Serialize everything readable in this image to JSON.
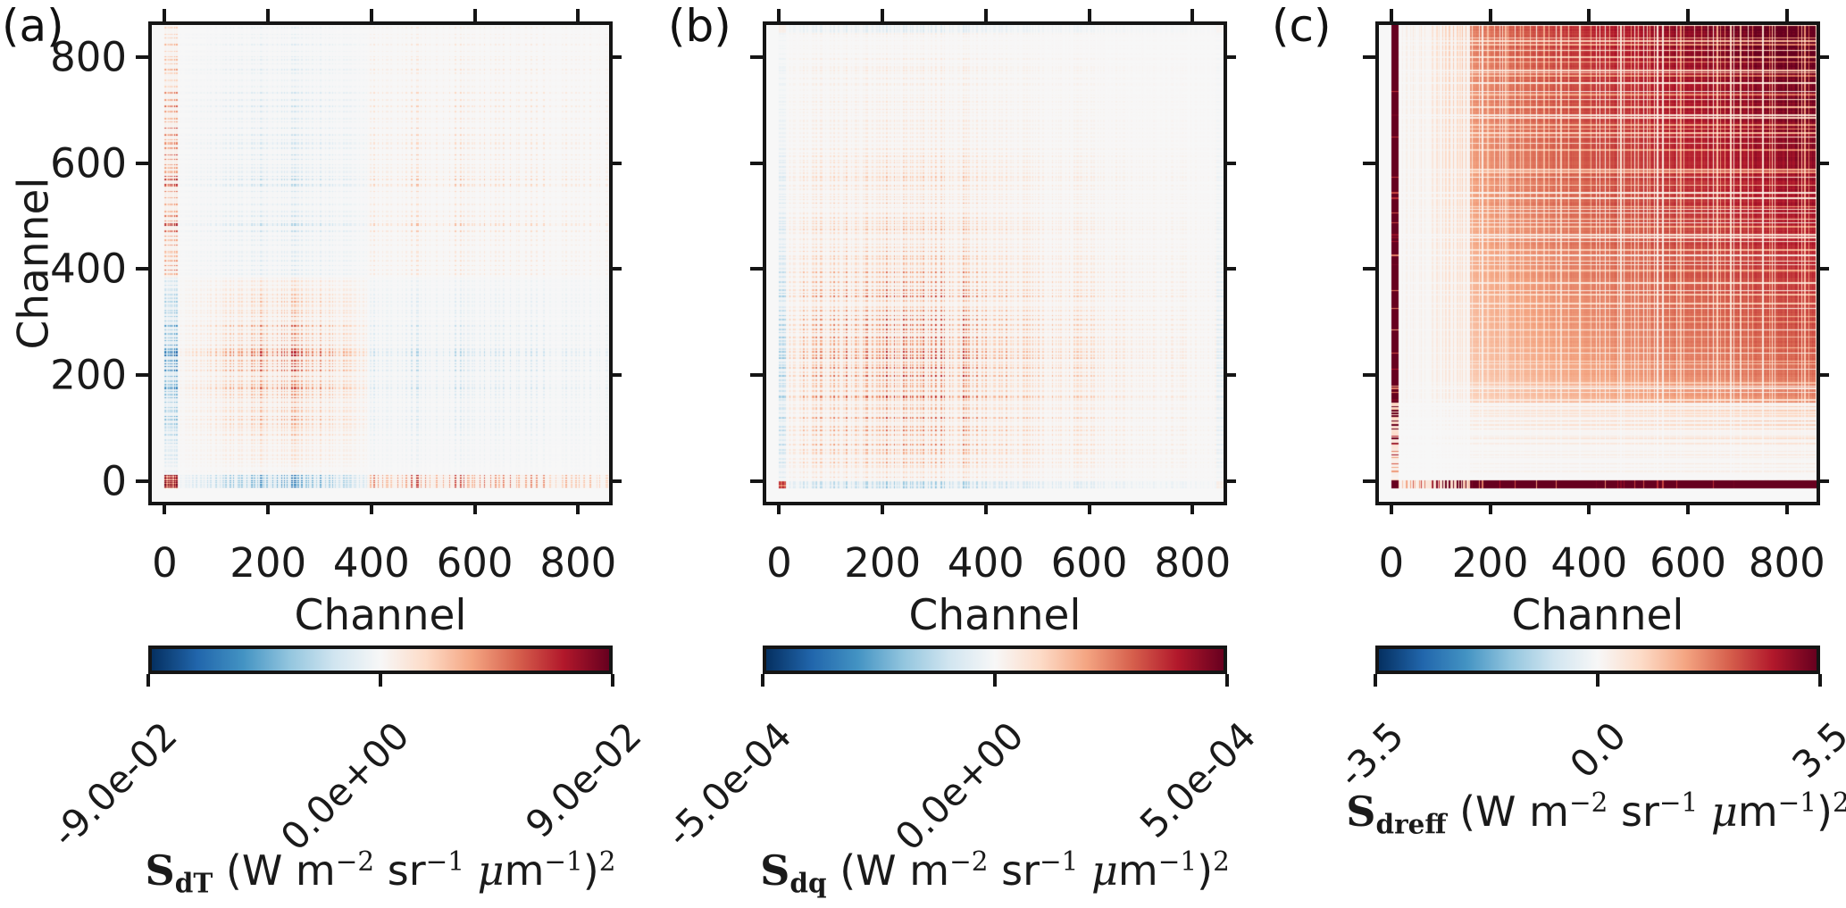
{
  "chart_data": [
    {
      "panel": "a",
      "type": "heatmap",
      "tag": "(a)",
      "xlabel": "Channel",
      "ylabel": "Channel",
      "x_ticks": [
        0,
        200,
        400,
        600,
        800
      ],
      "x_tick_labels": [
        "0",
        "200",
        "400",
        "600",
        "800"
      ],
      "y_ticks": [
        0,
        200,
        400,
        600,
        800
      ],
      "y_tick_labels": [
        "0",
        "200",
        "400",
        "600",
        "800"
      ],
      "axis_range": [
        -25,
        860
      ],
      "n_channels": 880,
      "colormap": "RdBu_r",
      "vmin": -0.09,
      "vmax": 0.09,
      "colorbar_ticks": [
        -0.09,
        0.0,
        0.09
      ],
      "colorbar_tick_labels": [
        "-9.0e-02",
        "0.0e+00",
        "9.0e-02"
      ],
      "quantity": "S_dT",
      "units_text": "(W m⁻² sr⁻¹ μm⁻¹)²",
      "label_rich": [
        {
          "t": "S",
          "b": true,
          "serif": true
        },
        {
          "t": "dT",
          "b": true,
          "sub": true,
          "serif": true
        },
        {
          "t": " (W m"
        },
        {
          "t": "−2",
          "sup": true,
          "serif": true
        },
        {
          "t": " sr"
        },
        {
          "t": "−1",
          "sup": true,
          "serif": true
        },
        {
          "t": " "
        },
        {
          "t": "μ",
          "i": true,
          "serif": true
        },
        {
          "t": "m"
        },
        {
          "t": "−1",
          "sup": true,
          "serif": true
        },
        {
          "t": ")"
        },
        {
          "t": "2",
          "sup": true,
          "serif": true
        }
      ],
      "structure": "Temperature-Jacobian error covariance: positive block among channels ~30-390 peaking near channel 230; negative cross-correlation stripes between low (30-390) and high (>390) channels; weak positive striping among high channels; strong positive edge-channel group (<30) that is dark red on the diagonal corner and anti-correlated with the 30-390 block; fine comb-like spectral striping throughout"
    },
    {
      "panel": "b",
      "type": "heatmap",
      "tag": "(b)",
      "xlabel": "Channel",
      "ylabel": "Channel",
      "x_ticks": [
        0,
        200,
        400,
        600,
        800
      ],
      "x_tick_labels": [
        "0",
        "200",
        "400",
        "600",
        "800"
      ],
      "y_ticks": [
        0,
        200,
        400,
        600,
        800
      ],
      "y_tick_labels": [],
      "axis_range": [
        -25,
        860
      ],
      "n_channels": 880,
      "colormap": "RdBu_r",
      "vmin": -0.0005,
      "vmax": 0.0005,
      "colorbar_ticks": [
        -0.0005,
        0.0,
        0.0005
      ],
      "colorbar_tick_labels": [
        "-5.0e-04",
        "0.0e+00",
        "5.0e-04"
      ],
      "quantity": "S_dq",
      "units_text": "(W m⁻² sr⁻¹ μm⁻¹)²",
      "label_rich": [
        {
          "t": "S",
          "b": true,
          "serif": true
        },
        {
          "t": "dq",
          "b": true,
          "sub": true,
          "serif": true
        },
        {
          "t": " (W m"
        },
        {
          "t": "−2",
          "sup": true,
          "serif": true
        },
        {
          "t": " sr"
        },
        {
          "t": "−1",
          "sup": true,
          "serif": true
        },
        {
          "t": " "
        },
        {
          "t": "μ",
          "i": true,
          "serif": true
        },
        {
          "t": "m"
        },
        {
          "t": "−1",
          "sup": true,
          "serif": true
        },
        {
          "t": ")"
        },
        {
          "t": "2",
          "sup": true,
          "serif": true
        }
      ],
      "structure": "Humidity-Jacobian error covariance: predominantly positive (orange-red) comb-striped correlations strongest among channels ~100-450, fading toward high channels; thin negative (blue) stripes along the lowest channels (<15) and at the highest channels near 860"
    },
    {
      "panel": "c",
      "type": "heatmap",
      "tag": "(c)",
      "xlabel": "Channel",
      "ylabel": "Channel",
      "x_ticks": [
        0,
        200,
        400,
        600,
        800
      ],
      "x_tick_labels": [
        "0",
        "200",
        "400",
        "600",
        "800"
      ],
      "y_ticks": [
        0,
        200,
        400,
        600,
        800
      ],
      "y_tick_labels": [],
      "axis_range": [
        -25,
        860
      ],
      "n_channels": 880,
      "colormap": "RdBu_r",
      "vmin": -3.5,
      "vmax": 3.5,
      "colorbar_ticks": [
        -3.5,
        0.0,
        3.5
      ],
      "colorbar_tick_labels": [
        "-3.5",
        "0.0",
        "3.5"
      ],
      "quantity": "S_dreff",
      "units_text": "(W m⁻² sr⁻¹ μm⁻¹)²",
      "label_rich": [
        {
          "t": "S",
          "b": true,
          "serif": true
        },
        {
          "t": "dreff",
          "b": true,
          "sub": true,
          "serif": true
        },
        {
          "t": " (W m"
        },
        {
          "t": "−2",
          "sup": true,
          "serif": true
        },
        {
          "t": " sr"
        },
        {
          "t": "−1",
          "sup": true,
          "serif": true
        },
        {
          "t": " "
        },
        {
          "t": "μ",
          "i": true,
          "serif": true
        },
        {
          "t": "m"
        },
        {
          "t": "−1",
          "sup": true,
          "serif": true
        },
        {
          "t": ")"
        },
        {
          "t": "2",
          "sup": true,
          "serif": true
        }
      ],
      "structure": "Effective-radius-Jacobian error covariance: saturated dark-red positive values over most channel pairs above ~150, increasing with channel index; pale near-zero band for channels <150 with pink comb stripes; deep white negative-notch lines crossing the whole matrix produce a plaid pattern; strong dark-red stripe at the lowest channels (<15)"
    }
  ],
  "colormap_stops": [
    "#053061",
    "#2166ac",
    "#4393c3",
    "#92c5de",
    "#d1e5f0",
    "#f7f7f7",
    "#fddbc7",
    "#f4a582",
    "#d6604d",
    "#b2182b",
    "#67001f"
  ]
}
